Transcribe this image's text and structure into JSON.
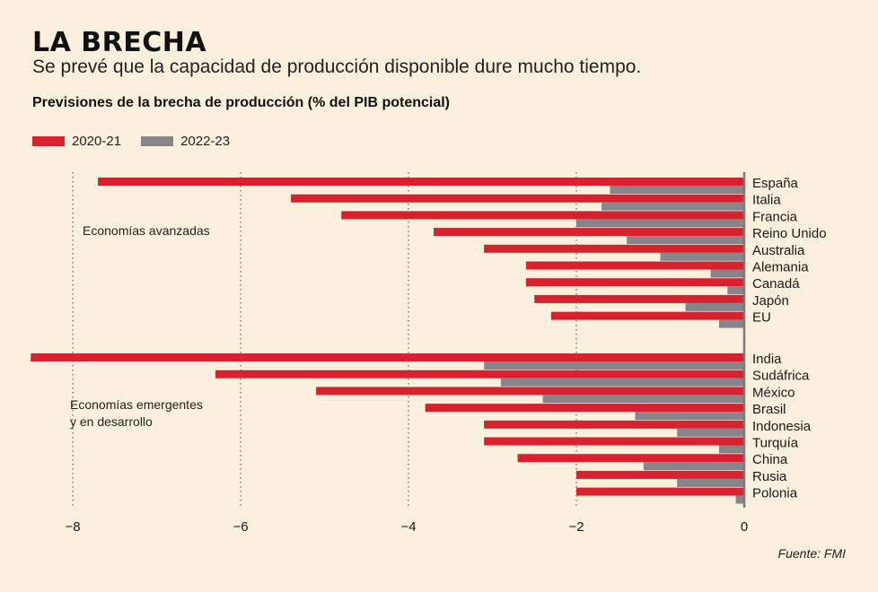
{
  "title": "LA BRECHA",
  "subtitle": "Se prevé que la capacidad de producción disponible dure mucho tiempo.",
  "chart_heading": "Previsiones de la brecha de producción (% del PIB potencial)",
  "legend": [
    {
      "label": "2020-21",
      "color": "#d7212e"
    },
    {
      "label": "2022-23",
      "color": "#87858a"
    }
  ],
  "group_labels": {
    "advanced": "Economías avanzadas",
    "emerging_line1": "Economías emergentes",
    "emerging_line2": "y en desarrollo"
  },
  "source": "Fuente: FMI",
  "chart_data": {
    "type": "bar",
    "orientation": "horizontal",
    "title": "Previsiones de la brecha de producción (% del PIB potencial)",
    "xlim": [
      -8.5,
      0
    ],
    "xticks": [
      -8,
      -6,
      -4,
      -2,
      0
    ],
    "grid": "dotted vertical lines",
    "legend_position": "top-left",
    "series": [
      {
        "name": "2020-21",
        "color": "#d7212e"
      },
      {
        "name": "2022-23",
        "color": "#87858a"
      }
    ],
    "groups": [
      {
        "label": "Economías avanzadas",
        "categories": [
          "España",
          "Italia",
          "Francia",
          "Reino Unido",
          "Australia",
          "Alemania",
          "Canadá",
          "Japón",
          "EU"
        ],
        "values_2020_21": [
          -7.7,
          -5.4,
          -4.8,
          -3.7,
          -3.1,
          -2.6,
          -2.6,
          -2.5,
          -2.3
        ],
        "values_2022_23": [
          -1.6,
          -1.7,
          -2.0,
          -1.4,
          -1.0,
          -0.4,
          -0.2,
          -0.7,
          -0.3
        ]
      },
      {
        "label": "Economías emergentes y en desarrollo",
        "categories": [
          "India",
          "Sudáfrica",
          "México",
          "Brasil",
          "Indonesia",
          "Turquía",
          "China",
          "Rusia",
          "Polonia"
        ],
        "values_2020_21": [
          -8.5,
          -6.3,
          -5.1,
          -3.8,
          -3.1,
          -3.1,
          -2.7,
          -2.0,
          -2.0
        ],
        "values_2022_23": [
          -3.1,
          -2.9,
          -2.4,
          -1.3,
          -0.8,
          -0.3,
          -1.2,
          -0.8,
          -0.1
        ]
      }
    ]
  }
}
